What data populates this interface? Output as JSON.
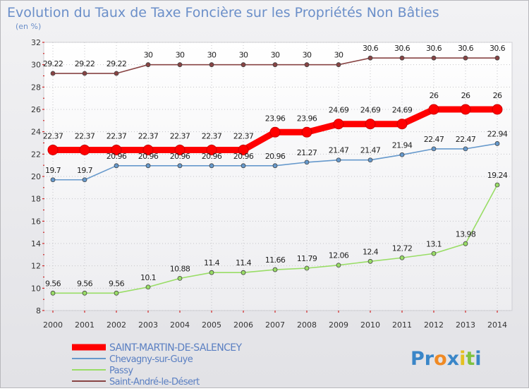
{
  "chart_data": {
    "type": "line",
    "title": "Evolution du Taux de Taxe Foncière sur les Propriétés Non Bâties",
    "ylabel": "(en %)",
    "xlabel": "",
    "x": [
      "2000",
      "2001",
      "2002",
      "2003",
      "2004",
      "2005",
      "2006",
      "2007",
      "2008",
      "2009",
      "2010",
      "2011",
      "2012",
      "2013",
      "2014"
    ],
    "ylim": [
      8,
      32
    ],
    "yticks": [
      "8",
      "10",
      "12",
      "14",
      "16",
      "18",
      "20",
      "22",
      "24",
      "26",
      "28",
      "30",
      "32"
    ],
    "series": [
      {
        "name": "SAINT-MARTIN-DE-SALENCEY",
        "color": "#ff0000",
        "highlight": true,
        "values": [
          22.37,
          22.37,
          22.37,
          22.37,
          22.37,
          22.37,
          22.37,
          23.96,
          23.96,
          24.69,
          24.69,
          24.69,
          26,
          26,
          26
        ],
        "labels": [
          "22.37",
          "22.37",
          "22.37",
          "22.37",
          "22.37",
          "22.37",
          "22.37",
          "23.96",
          "23.96",
          "24.69",
          "24.69",
          "24.69",
          "26",
          "26",
          "26"
        ]
      },
      {
        "name": "Chevagny-sur-Guye",
        "color": "#6699cc",
        "highlight": false,
        "values": [
          19.7,
          19.7,
          20.96,
          20.96,
          20.96,
          20.96,
          20.96,
          20.96,
          21.27,
          21.47,
          21.47,
          21.94,
          22.47,
          22.47,
          22.94
        ],
        "labels": [
          "19.7",
          "19.7",
          "20.96",
          "20.96",
          "20.96",
          "20.96",
          "20.96",
          "20.96",
          "21.27",
          "21.47",
          "21.47",
          "21.94",
          "22.47",
          "22.47",
          "22.94"
        ]
      },
      {
        "name": "Passy",
        "color": "#99dd66",
        "highlight": false,
        "values": [
          9.56,
          9.56,
          9.56,
          10.1,
          10.88,
          11.4,
          11.4,
          11.66,
          11.79,
          12.06,
          12.4,
          12.72,
          13.1,
          13.98,
          19.24
        ],
        "labels": [
          "9.56",
          "9.56",
          "9.56",
          "10.1",
          "10.88",
          "11.4",
          "11.4",
          "11.66",
          "11.79",
          "12.06",
          "12.4",
          "12.72",
          "13.1",
          "13.98",
          "19.24"
        ]
      },
      {
        "name": "Saint-André-le-Désert",
        "color": "#884444",
        "highlight": false,
        "values": [
          29.22,
          29.22,
          29.22,
          30,
          30,
          30,
          30,
          30,
          30,
          30,
          30.6,
          30.6,
          30.6,
          30.6,
          30.6
        ],
        "labels": [
          "29.22",
          "29.22",
          "29.22",
          "30",
          "30",
          "30",
          "30",
          "30",
          "30",
          "30",
          "30.6",
          "30.6",
          "30.6",
          "30.6",
          "30.6"
        ]
      }
    ],
    "watermark": "Proxiti"
  }
}
